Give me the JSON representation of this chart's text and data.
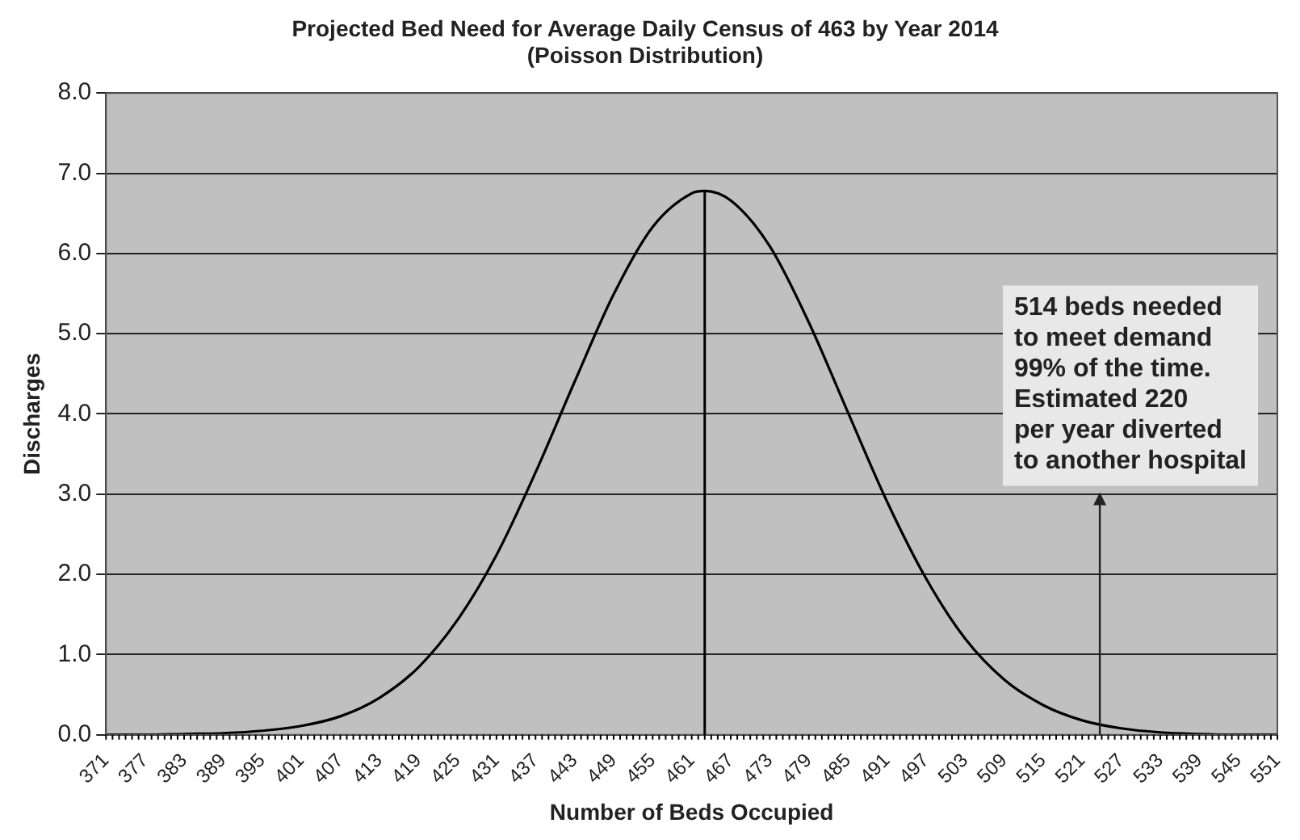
{
  "chart_data": {
    "type": "line",
    "title": "Projected Bed Need for Average Daily Census of 463 by Year 2014",
    "subtitle": "(Poisson Distribution)",
    "xlabel": "Number of Beds Occupied",
    "ylabel": "Discharges",
    "x": [
      371,
      377,
      383,
      389,
      395,
      401,
      407,
      413,
      419,
      425,
      431,
      437,
      443,
      449,
      455,
      461,
      463,
      467,
      473,
      479,
      485,
      491,
      497,
      503,
      509,
      515,
      521,
      527,
      533,
      539,
      545,
      551
    ],
    "series": [
      {
        "color": "#000000",
        "values": [
          0.0,
          0.0,
          0.01,
          0.02,
          0.05,
          0.11,
          0.23,
          0.46,
          0.84,
          1.43,
          2.24,
          3.27,
          4.4,
          5.49,
          6.33,
          6.75,
          6.78,
          6.66,
          6.09,
          5.14,
          4.02,
          2.91,
          1.95,
          1.2,
          0.69,
          0.37,
          0.18,
          0.08,
          0.03,
          0.01,
          0.0,
          0.0
        ]
      }
    ],
    "xlim": [
      371,
      551
    ],
    "xticks": [
      371,
      377,
      383,
      389,
      395,
      401,
      407,
      413,
      419,
      425,
      431,
      437,
      443,
      449,
      455,
      461,
      467,
      473,
      479,
      485,
      491,
      497,
      503,
      509,
      515,
      521,
      527,
      533,
      539,
      545,
      551
    ],
    "ylim": [
      0,
      8
    ],
    "yticks": [
      {
        "value": 0,
        "label": "0.0"
      },
      {
        "value": 1,
        "label": "1.0"
      },
      {
        "value": 2,
        "label": "2.0"
      },
      {
        "value": 3,
        "label": "3.0"
      },
      {
        "value": 4,
        "label": "4.0"
      },
      {
        "value": 5,
        "label": "5.0"
      },
      {
        "value": 6,
        "label": "6.0"
      },
      {
        "value": 7,
        "label": "7.0"
      },
      {
        "value": 8,
        "label": "8.0"
      }
    ],
    "ref_lines": [
      {
        "axis": "x",
        "value": 463,
        "color": "#000000"
      }
    ],
    "annotations": [
      "514 beds needed\nto meet demand\n99% of the time.\nEstimated 220\nper year diverted\nto another hospital"
    ],
    "grid": "y",
    "legend": false,
    "marker": "none",
    "line_style": "solid"
  }
}
